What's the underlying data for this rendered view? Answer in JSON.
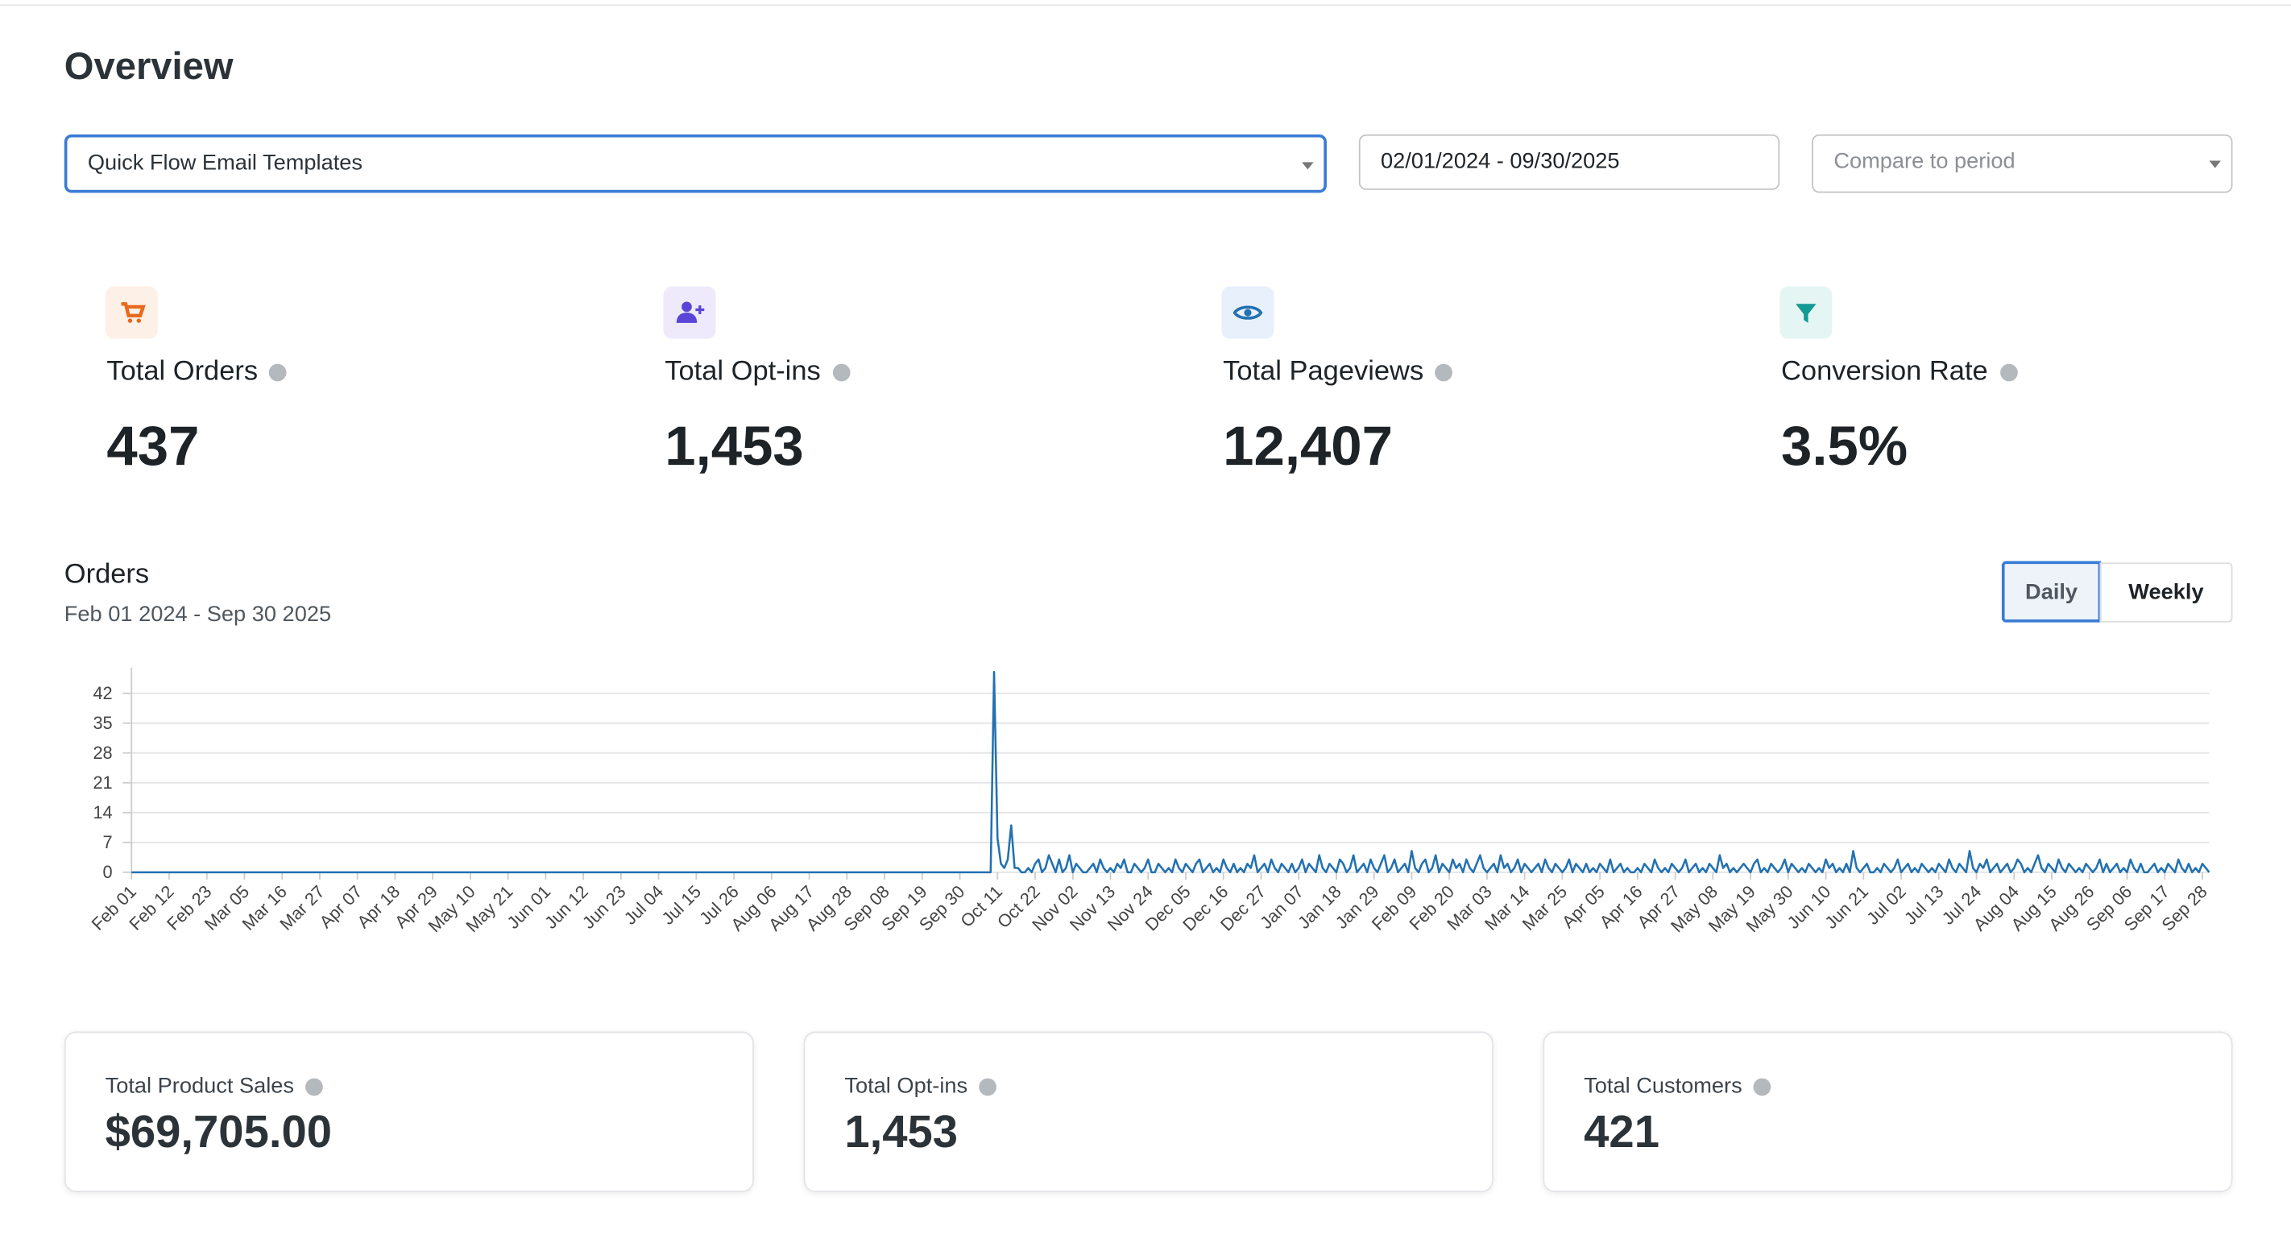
{
  "page": {
    "title": "Overview",
    "filters": {
      "template": "Quick Flow Email Templates",
      "date_range": "02/01/2024 - 09/30/2025",
      "compare": "Compare to period"
    },
    "metrics": [
      {
        "label": "Total Orders",
        "value": "437"
      },
      {
        "label": "Total Opt-ins",
        "value": "1,453"
      },
      {
        "label": "Total Pageviews",
        "value": "12,407"
      },
      {
        "label": "Conversion Rate",
        "value": "3.5%"
      }
    ],
    "toggle": [
      "Daily",
      "Weekly"
    ],
    "cards": [
      {
        "label": "Total Product Sales",
        "value": "$69,705.00"
      },
      {
        "label": "Total Opt-ins",
        "value": "1,453"
      },
      {
        "label": "Total Customers",
        "value": "421"
      }
    ]
  },
  "chart_data": {
    "type": "line",
    "title": "Orders",
    "subtitle": "Feb 01 2024 - Sep 30 2025",
    "color": "#2271b1",
    "grid": true,
    "ylim": [
      0,
      48
    ],
    "yticks": [
      0,
      7,
      14,
      21,
      28,
      35,
      42
    ],
    "categories": [
      "Feb 01",
      null,
      null,
      null,
      null,
      null,
      null,
      null,
      null,
      null,
      null,
      "Feb 12",
      null,
      null,
      null,
      null,
      null,
      null,
      null,
      null,
      null,
      null,
      "Feb 23",
      null,
      null,
      null,
      null,
      null,
      null,
      null,
      null,
      null,
      null,
      "Mar 05",
      null,
      null,
      null,
      null,
      null,
      null,
      null,
      null,
      null,
      null,
      "Mar 16",
      null,
      null,
      null,
      null,
      null,
      null,
      null,
      null,
      null,
      null,
      "Mar 27",
      null,
      null,
      null,
      null,
      null,
      null,
      null,
      null,
      null,
      null,
      "Apr 07",
      null,
      null,
      null,
      null,
      null,
      null,
      null,
      null,
      null,
      null,
      "Apr 18",
      null,
      null,
      null,
      null,
      null,
      null,
      null,
      null,
      null,
      null,
      "Apr 29",
      null,
      null,
      null,
      null,
      null,
      null,
      null,
      null,
      null,
      null,
      "May 10",
      null,
      null,
      null,
      null,
      null,
      null,
      null,
      null,
      null,
      null,
      "May 21",
      null,
      null,
      null,
      null,
      null,
      null,
      null,
      null,
      null,
      null,
      "Jun 01",
      null,
      null,
      null,
      null,
      null,
      null,
      null,
      null,
      null,
      null,
      "Jun 12",
      null,
      null,
      null,
      null,
      null,
      null,
      null,
      null,
      null,
      null,
      "Jun 23",
      null,
      null,
      null,
      null,
      null,
      null,
      null,
      null,
      null,
      null,
      "Jul 04",
      null,
      null,
      null,
      null,
      null,
      null,
      null,
      null,
      null,
      null,
      "Jul 15",
      null,
      null,
      null,
      null,
      null,
      null,
      null,
      null,
      null,
      null,
      "Jul 26",
      null,
      null,
      null,
      null,
      null,
      null,
      null,
      null,
      null,
      null,
      "Aug 06",
      null,
      null,
      null,
      null,
      null,
      null,
      null,
      null,
      null,
      null,
      "Aug 17",
      null,
      null,
      null,
      null,
      null,
      null,
      null,
      null,
      null,
      null,
      "Aug 28",
      null,
      null,
      null,
      null,
      null,
      null,
      null,
      null,
      null,
      null,
      "Sep 08",
      null,
      null,
      null,
      null,
      null,
      null,
      null,
      null,
      null,
      null,
      "Sep 19",
      null,
      null,
      null,
      null,
      null,
      null,
      null,
      null,
      null,
      null,
      "Sep 30",
      null,
      null,
      null,
      null,
      null,
      null,
      null,
      null,
      null,
      null,
      "Oct 11",
      null,
      null,
      null,
      null,
      null,
      null,
      null,
      null,
      null,
      null,
      "Oct 22",
      null,
      null,
      null,
      null,
      null,
      null,
      null,
      null,
      null,
      null,
      "Nov 02",
      null,
      null,
      null,
      null,
      null,
      null,
      null,
      null,
      null,
      null,
      "Nov 13",
      null,
      null,
      null,
      null,
      null,
      null,
      null,
      null,
      null,
      null,
      "Nov 24",
      null,
      null,
      null,
      null,
      null,
      null,
      null,
      null,
      null,
      null,
      "Dec 05",
      null,
      null,
      null,
      null,
      null,
      null,
      null,
      null,
      null,
      null,
      "Dec 16",
      null,
      null,
      null,
      null,
      null,
      null,
      null,
      null,
      null,
      null,
      "Dec 27",
      null,
      null,
      null,
      null,
      null,
      null,
      null,
      null,
      null,
      null,
      "Jan 07",
      null,
      null,
      null,
      null,
      null,
      null,
      null,
      null,
      null,
      null,
      "Jan 18",
      null,
      null,
      null,
      null,
      null,
      null,
      null,
      null,
      null,
      null,
      "Jan 29",
      null,
      null,
      null,
      null,
      null,
      null,
      null,
      null,
      null,
      null,
      "Feb 09",
      null,
      null,
      null,
      null,
      null,
      null,
      null,
      null,
      null,
      null,
      "Feb 20",
      null,
      null,
      null,
      null,
      null,
      null,
      null,
      null,
      null,
      null,
      "Mar 03",
      null,
      null,
      null,
      null,
      null,
      null,
      null,
      null,
      null,
      null,
      "Mar 14",
      null,
      null,
      null,
      null,
      null,
      null,
      null,
      null,
      null,
      null,
      "Mar 25",
      null,
      null,
      null,
      null,
      null,
      null,
      null,
      null,
      null,
      null,
      "Apr 05",
      null,
      null,
      null,
      null,
      null,
      null,
      null,
      null,
      null,
      null,
      "Apr 16",
      null,
      null,
      null,
      null,
      null,
      null,
      null,
      null,
      null,
      null,
      "Apr 27",
      null,
      null,
      null,
      null,
      null,
      null,
      null,
      null,
      null,
      null,
      "May 08",
      null,
      null,
      null,
      null,
      null,
      null,
      null,
      null,
      null,
      null,
      "May 19",
      null,
      null,
      null,
      null,
      null,
      null,
      null,
      null,
      null,
      null,
      "May 30",
      null,
      null,
      null,
      null,
      null,
      null,
      null,
      null,
      null,
      null,
      "Jun 10",
      null,
      null,
      null,
      null,
      null,
      null,
      null,
      null,
      null,
      null,
      "Jun 21",
      null,
      null,
      null,
      null,
      null,
      null,
      null,
      null,
      null,
      null,
      "Jul 02",
      null,
      null,
      null,
      null,
      null,
      null,
      null,
      null,
      null,
      null,
      "Jul 13",
      null,
      null,
      null,
      null,
      null,
      null,
      null,
      null,
      null,
      null,
      "Jul 24",
      null,
      null,
      null,
      null,
      null,
      null,
      null,
      null,
      null,
      null,
      "Aug 04",
      null,
      null,
      null,
      null,
      null,
      null,
      null,
      null,
      null,
      null,
      "Aug 15",
      null,
      null,
      null,
      null,
      null,
      null,
      null,
      null,
      null,
      null,
      "Aug 26",
      null,
      null,
      null,
      null,
      null,
      null,
      null,
      null,
      null,
      null,
      "Sep 06",
      null,
      null,
      null,
      null,
      null,
      null,
      null,
      null,
      null,
      null,
      "Sep 17",
      null,
      null,
      null,
      null,
      null,
      null,
      null,
      null,
      null,
      null,
      "Sep 28",
      null,
      null
    ],
    "values": [
      0,
      0,
      0,
      0,
      0,
      0,
      0,
      0,
      0,
      0,
      0,
      0,
      0,
      0,
      0,
      0,
      0,
      0,
      0,
      0,
      0,
      0,
      0,
      0,
      0,
      0,
      0,
      0,
      0,
      0,
      0,
      0,
      0,
      0,
      0,
      0,
      0,
      0,
      0,
      0,
      0,
      0,
      0,
      0,
      0,
      0,
      0,
      0,
      0,
      0,
      0,
      0,
      0,
      0,
      0,
      0,
      0,
      0,
      0,
      0,
      0,
      0,
      0,
      0,
      0,
      0,
      0,
      0,
      0,
      0,
      0,
      0,
      0,
      0,
      0,
      0,
      0,
      0,
      0,
      0,
      0,
      0,
      0,
      0,
      0,
      0,
      0,
      0,
      0,
      0,
      0,
      0,
      0,
      0,
      0,
      0,
      0,
      0,
      0,
      0,
      0,
      0,
      0,
      0,
      0,
      0,
      0,
      0,
      0,
      0,
      0,
      0,
      0,
      0,
      0,
      0,
      0,
      0,
      0,
      0,
      0,
      0,
      0,
      0,
      0,
      0,
      0,
      0,
      0,
      0,
      0,
      0,
      0,
      0,
      0,
      0,
      0,
      0,
      0,
      0,
      0,
      0,
      0,
      0,
      0,
      0,
      0,
      0,
      0,
      0,
      0,
      0,
      0,
      0,
      0,
      0,
      0,
      0,
      0,
      0,
      0,
      0,
      0,
      0,
      0,
      0,
      0,
      0,
      0,
      0,
      0,
      0,
      0,
      0,
      0,
      0,
      0,
      0,
      0,
      0,
      0,
      0,
      0,
      0,
      0,
      0,
      0,
      0,
      0,
      0,
      0,
      0,
      0,
      0,
      0,
      0,
      0,
      0,
      0,
      0,
      0,
      0,
      0,
      0,
      0,
      0,
      0,
      0,
      0,
      0,
      0,
      0,
      0,
      0,
      0,
      0,
      0,
      0,
      0,
      0,
      0,
      0,
      0,
      0,
      0,
      0,
      0,
      0,
      0,
      0,
      0,
      0,
      0,
      0,
      0,
      0,
      0,
      0,
      0,
      0,
      0,
      0,
      0,
      0,
      0,
      0,
      0,
      0,
      0,
      0,
      0,
      0,
      47,
      8,
      2,
      1,
      3,
      11,
      1,
      1,
      0,
      0,
      1,
      0,
      2,
      3,
      0,
      1,
      4,
      2,
      0,
      3,
      0,
      1,
      4,
      0,
      2,
      1,
      0,
      0,
      1,
      2,
      0,
      3,
      1,
      0,
      1,
      0,
      2,
      1,
      3,
      0,
      0,
      2,
      1,
      0,
      1,
      3,
      0,
      0,
      2,
      1,
      0,
      1,
      0,
      3,
      1,
      0,
      2,
      1,
      0,
      2,
      3,
      0,
      1,
      2,
      0,
      1,
      0,
      3,
      1,
      0,
      2,
      0,
      1,
      0,
      2,
      1,
      4,
      0,
      1,
      2,
      0,
      3,
      1,
      0,
      2,
      1,
      0,
      2,
      0,
      1,
      3,
      0,
      2,
      1,
      0,
      4,
      1,
      0,
      2,
      1,
      0,
      3,
      2,
      0,
      1,
      4,
      0,
      1,
      2,
      0,
      3,
      1,
      0,
      2,
      4,
      0,
      1,
      3,
      0,
      1,
      2,
      0,
      5,
      1,
      0,
      2,
      3,
      0,
      1,
      4,
      0,
      2,
      1,
      0,
      3,
      1,
      2,
      0,
      3,
      1,
      0,
      2,
      4,
      1,
      0,
      1,
      2,
      0,
      4,
      1,
      2,
      0,
      1,
      3,
      0,
      2,
      1,
      0,
      1,
      2,
      0,
      3,
      1,
      0,
      2,
      1,
      0,
      1,
      3,
      0,
      2,
      1,
      0,
      2,
      0,
      1,
      0,
      2,
      1,
      0,
      3,
      0,
      1,
      2,
      0,
      1,
      0,
      0,
      1,
      0,
      2,
      1,
      0,
      3,
      1,
      0,
      1,
      0,
      2,
      1,
      0,
      1,
      3,
      0,
      1,
      2,
      0,
      1,
      0,
      2,
      1,
      0,
      4,
      1,
      2,
      0,
      1,
      0,
      1,
      2,
      1,
      0,
      2,
      3,
      0,
      1,
      0,
      2,
      1,
      0,
      1,
      3,
      0,
      2,
      1,
      0,
      1,
      0,
      2,
      1,
      0,
      1,
      0,
      3,
      1,
      2,
      0,
      1,
      0,
      2,
      0,
      5,
      1,
      0,
      1,
      2,
      0,
      0,
      1,
      0,
      2,
      1,
      0,
      1,
      3,
      0,
      1,
      2,
      0,
      1,
      0,
      2,
      1,
      0,
      1,
      0,
      2,
      1,
      0,
      3,
      1,
      0,
      2,
      1,
      0,
      5,
      1,
      0,
      2,
      1,
      3,
      0,
      1,
      2,
      0,
      1,
      2,
      0,
      1,
      3,
      2,
      0,
      1,
      0,
      2,
      4,
      1,
      0,
      2,
      1,
      0,
      3,
      1,
      0,
      2,
      1,
      0,
      1,
      0,
      2,
      1,
      0,
      1,
      3,
      0,
      2,
      0,
      1,
      2,
      0,
      1,
      0,
      3,
      1,
      0,
      2,
      0,
      0,
      1,
      2,
      0,
      1,
      0,
      2,
      1,
      0,
      3,
      1,
      0,
      2,
      0,
      1,
      0,
      2,
      1,
      0
    ]
  }
}
